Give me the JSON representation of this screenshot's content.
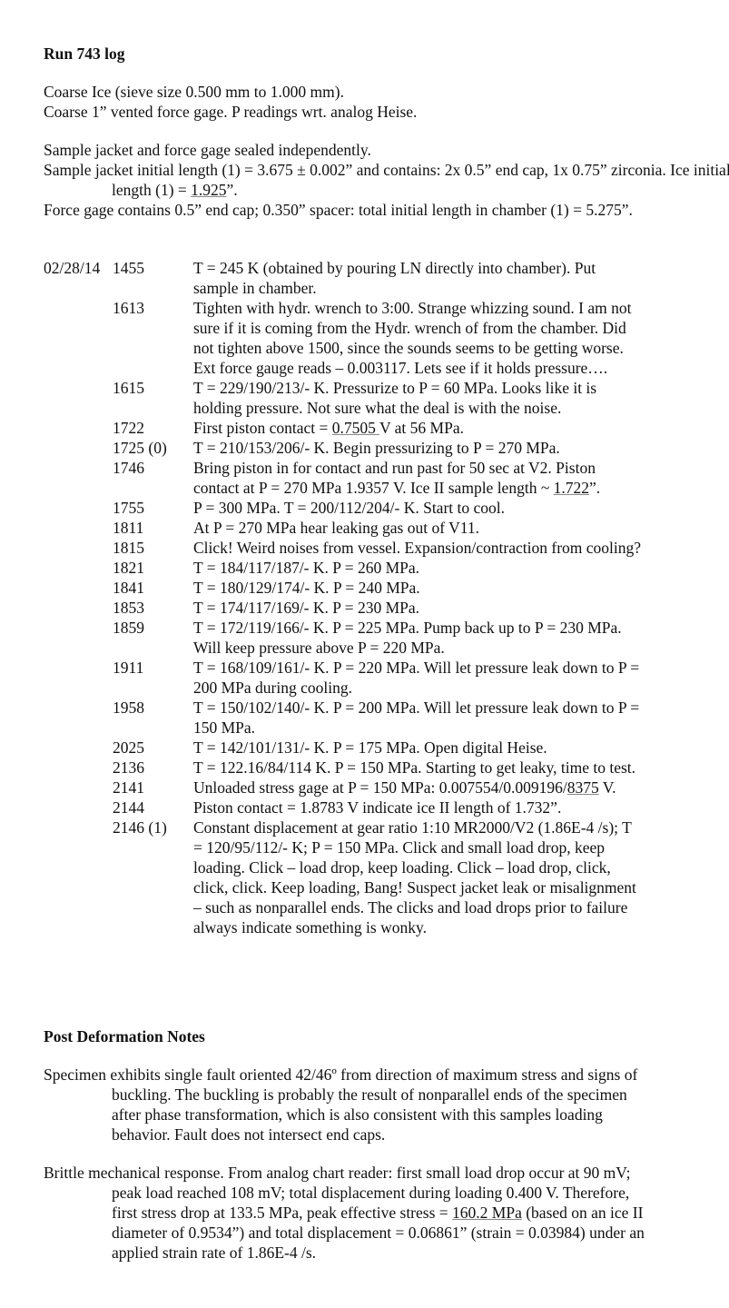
{
  "title": "Run 743 log",
  "intro": [
    "Coarse Ice (sieve size 0.500 mm to 1.000 mm).",
    "Coarse 1” vented force gage. P readings wrt. analog Heise."
  ],
  "setup": {
    "line1": "Sample jacket and force gage sealed independently.",
    "line2_pre": "Sample jacket initial length (1) = 3.675 ± 0.002” and contains: 2x 0.5” end cap, 1x 0.75” zirconia. Ice initial length (1) = ",
    "line2_u": "1.925",
    "line2_post": "”.",
    "line3": "Force gage contains 0.5” end cap; 0.350” spacer: total initial length in chamber (1) = 5.275”."
  },
  "log": [
    {
      "date": "02/28/14",
      "time": "1455",
      "pre": "T = 245 K (obtained by pouring LN directly into chamber). Put sample in chamber."
    },
    {
      "time": "1613",
      "pre": "Tighten with hydr. wrench to 3:00. Strange whizzing sound. I am not sure if it is coming from the Hydr. wrench of from the chamber. Did not tighten above 1500, since the sounds seems to be getting worse. Ext force gauge reads – 0.003117. Lets see if it holds pressure…."
    },
    {
      "time": "1615",
      "pre": "T = 229/190/213/- K. Pressurize to P = 60 MPa. Looks like it is holding pressure. Not sure what the deal is with the noise."
    },
    {
      "time": "1722",
      "pre": "First piston contact = ",
      "u": "0.7505 ",
      "post": "V at 56 MPa."
    },
    {
      "time": "1725 (0)",
      "pre": "T = 210/153/206/- K. Begin pressurizing to P = 270 MPa."
    },
    {
      "time": "1746",
      "pre": "Bring piston in for contact and run past for 50 sec at V2. Piston contact at P = 270 MPa 1.9357 V. Ice II sample length ~ ",
      "u": "1.722",
      "post": "”."
    },
    {
      "time": "1755",
      "pre": "P = 300 MPa. T = 200/112/204/- K. Start to cool."
    },
    {
      "time": "1811",
      "pre": "At P = 270 MPa hear leaking gas out of V11."
    },
    {
      "time": "1815",
      "pre": "Click!  Weird noises from vessel. Expansion/contraction from cooling?"
    },
    {
      "time": "1821",
      "pre": "T = 184/117/187/- K. P = 260 MPa."
    },
    {
      "time": "1841",
      "pre": "T = 180/129/174/- K. P = 240 MPa."
    },
    {
      "time": "1853",
      "pre": "T = 174/117/169/- K. P = 230 MPa."
    },
    {
      "time": "1859",
      "pre": "T = 172/119/166/- K. P = 225 MPa. Pump back up to P = 230 MPa. Will keep pressure above P = 220 MPa."
    },
    {
      "time": "1911",
      "pre": "T = 168/109/161/- K. P = 220 MPa. Will let pressure leak down to P = 200 MPa during cooling."
    },
    {
      "time": "1958",
      "pre": "T = 150/102/140/- K. P = 200 MPa. Will let pressure leak down to P = 150 MPa."
    },
    {
      "time": "2025",
      "pre": "T = 142/101/131/- K. P = 175 MPa. Open digital Heise."
    },
    {
      "time": "2136",
      "pre": "T = 122.16/84/114 K. P = 150 MPa. Starting to get leaky, time to test."
    },
    {
      "time": "2141",
      "pre": "Unloaded stress gage at P = 150 MPa: 0.007554/0.009196/",
      "u": "8375",
      "post": " V."
    },
    {
      "time": "2144",
      "pre": "Piston contact = 1.8783 V indicate ice II length of 1.732”."
    },
    {
      "time": "2146 (1)",
      "pre": "Constant displacement at gear ratio 1:10 MR2000/V2 (1.86E-4 /s); T = 120/95/112/- K; P = 150 MPa. Click and small load drop, keep loading. Click – load drop, keep loading. Click – load drop, click, click, click. Keep loading, Bang! Suspect jacket leak or misalignment – such as nonparallel ends. The clicks and load drops prior to failure always indicate something is wonky."
    }
  ],
  "post": {
    "heading": "Post Deformation Notes",
    "p1": "Specimen exhibits single fault oriented 42/46º from direction of maximum stress and signs of buckling. The buckling is probably the result of nonparallel ends of the specimen after phase transformation, which is also consistent with this samples loading behavior. Fault does not intersect end caps.",
    "p2_pre": "Brittle mechanical response. From analog chart reader: first small load drop occur at 90 mV; peak load reached 108 mV; total displacement during loading 0.400 V. Therefore, first stress drop at 133.5 MPa, peak effective stress = ",
    "p2_u": " 160.2 MPa",
    "p2_post": " (based on an ice II diameter of 0.9534”) and total displacement = 0.06861” (strain = 0.03984) under an applied strain rate of 1.86E-4 /s."
  }
}
